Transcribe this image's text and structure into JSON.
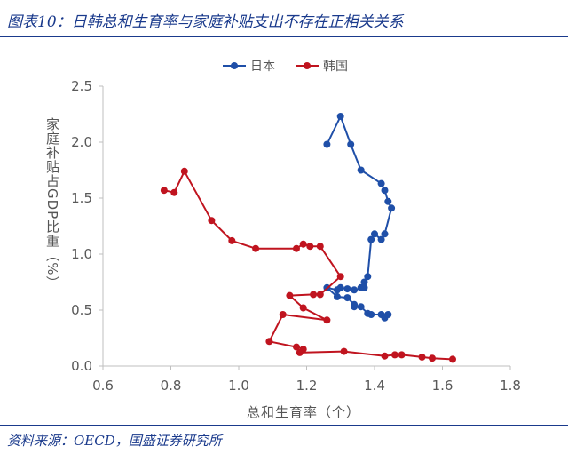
{
  "header": {
    "title": "图表10：日韩总和生育率与家庭补贴支出不存在正相关关系"
  },
  "footer": {
    "source": "资料来源：OECD，国盛证券研究所"
  },
  "colors": {
    "japan": "#1f4fa8",
    "korea": "#c0141f",
    "accent": "#1a3a8c",
    "axis": "#bfbfbf",
    "text": "#595959"
  },
  "chart_data": {
    "type": "scatter",
    "title": "",
    "xlabel": "总和生育率（个）",
    "ylabel": "家庭补贴占GDP比重（%）",
    "xlim": [
      0.6,
      1.8
    ],
    "ylim": [
      0.0,
      2.5
    ],
    "xticks": [
      "0.6",
      "0.8",
      "1.0",
      "1.2",
      "1.4",
      "1.6",
      "1.8"
    ],
    "yticks": [
      "0.0",
      "0.5",
      "1.0",
      "1.5",
      "2.0",
      "2.5"
    ],
    "legend_position": "top-center",
    "series": [
      {
        "name": "日本",
        "color_key": "japan",
        "points": [
          [
            1.26,
            1.98
          ],
          [
            1.3,
            2.23
          ],
          [
            1.33,
            1.98
          ],
          [
            1.36,
            1.75
          ],
          [
            1.42,
            1.63
          ],
          [
            1.43,
            1.57
          ],
          [
            1.44,
            1.47
          ],
          [
            1.45,
            1.41
          ],
          [
            1.43,
            1.18
          ],
          [
            1.42,
            1.13
          ],
          [
            1.4,
            1.18
          ],
          [
            1.39,
            1.13
          ],
          [
            1.38,
            0.8
          ],
          [
            1.37,
            0.75
          ],
          [
            1.36,
            0.7
          ],
          [
            1.37,
            0.7
          ],
          [
            1.34,
            0.68
          ],
          [
            1.32,
            0.69
          ],
          [
            1.3,
            0.7
          ],
          [
            1.29,
            0.68
          ],
          [
            1.26,
            0.7
          ],
          [
            1.29,
            0.62
          ],
          [
            1.32,
            0.61
          ],
          [
            1.34,
            0.55
          ],
          [
            1.34,
            0.53
          ],
          [
            1.36,
            0.53
          ],
          [
            1.38,
            0.47
          ],
          [
            1.39,
            0.46
          ],
          [
            1.42,
            0.46
          ],
          [
            1.43,
            0.43
          ],
          [
            1.44,
            0.46
          ]
        ]
      },
      {
        "name": "韩国",
        "color_key": "korea",
        "points": [
          [
            0.78,
            1.57
          ],
          [
            0.81,
            1.55
          ],
          [
            0.84,
            1.74
          ],
          [
            0.92,
            1.3
          ],
          [
            0.98,
            1.12
          ],
          [
            1.05,
            1.05
          ],
          [
            1.17,
            1.05
          ],
          [
            1.19,
            1.09
          ],
          [
            1.21,
            1.07
          ],
          [
            1.24,
            1.07
          ],
          [
            1.3,
            0.8
          ],
          [
            1.24,
            0.64
          ],
          [
            1.22,
            0.64
          ],
          [
            1.15,
            0.63
          ],
          [
            1.19,
            0.52
          ],
          [
            1.26,
            0.41
          ],
          [
            1.13,
            0.46
          ],
          [
            1.09,
            0.22
          ],
          [
            1.17,
            0.17
          ],
          [
            1.19,
            0.15
          ],
          [
            1.18,
            0.12
          ],
          [
            1.31,
            0.13
          ],
          [
            1.43,
            0.09
          ],
          [
            1.46,
            0.1
          ],
          [
            1.48,
            0.1
          ],
          [
            1.54,
            0.08
          ],
          [
            1.57,
            0.07
          ],
          [
            1.63,
            0.06
          ]
        ]
      }
    ]
  }
}
